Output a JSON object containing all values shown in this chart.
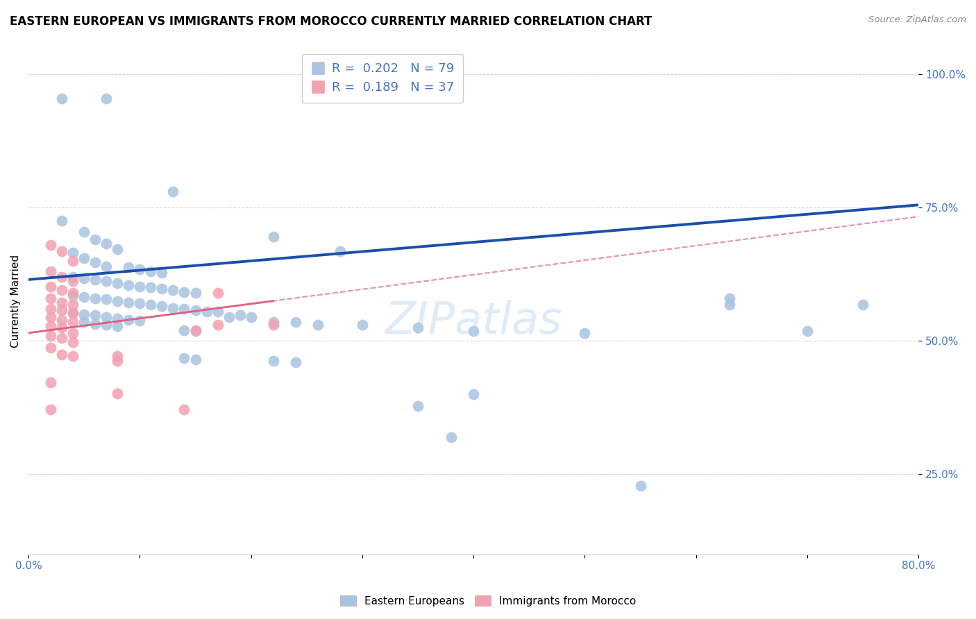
{
  "title": "EASTERN EUROPEAN VS IMMIGRANTS FROM MOROCCO CURRENTLY MARRIED CORRELATION CHART",
  "source": "Source: ZipAtlas.com",
  "ylabel": "Currently Married",
  "xlim": [
    0.0,
    0.8
  ],
  "ylim": [
    0.1,
    1.05
  ],
  "ytick_positions": [
    0.25,
    0.5,
    0.75,
    1.0
  ],
  "ytick_labels": [
    "25.0%",
    "50.0%",
    "75.0%",
    "100.0%"
  ],
  "R_blue": 0.202,
  "N_blue": 79,
  "R_pink": 0.189,
  "N_pink": 37,
  "watermark": "ZIPatlas",
  "blue_color": "#a8c4e0",
  "blue_line_color": "#1a4faa",
  "pink_color": "#f4a0b0",
  "pink_line_color": "#e06080",
  "blue_line_x": [
    0.0,
    0.8
  ],
  "blue_line_y": [
    0.615,
    0.755
  ],
  "pink_line_x": [
    0.0,
    0.22
  ],
  "pink_line_y": [
    0.515,
    0.575
  ],
  "blue_scatter": [
    [
      0.03,
      0.955
    ],
    [
      0.07,
      0.955
    ],
    [
      0.13,
      0.78
    ],
    [
      0.22,
      0.695
    ],
    [
      0.28,
      0.668
    ],
    [
      0.03,
      0.725
    ],
    [
      0.05,
      0.705
    ],
    [
      0.06,
      0.69
    ],
    [
      0.07,
      0.682
    ],
    [
      0.08,
      0.672
    ],
    [
      0.04,
      0.665
    ],
    [
      0.05,
      0.655
    ],
    [
      0.06,
      0.648
    ],
    [
      0.07,
      0.64
    ],
    [
      0.09,
      0.638
    ],
    [
      0.1,
      0.635
    ],
    [
      0.11,
      0.63
    ],
    [
      0.12,
      0.628
    ],
    [
      0.04,
      0.62
    ],
    [
      0.05,
      0.618
    ],
    [
      0.06,
      0.615
    ],
    [
      0.07,
      0.612
    ],
    [
      0.08,
      0.608
    ],
    [
      0.09,
      0.605
    ],
    [
      0.1,
      0.602
    ],
    [
      0.11,
      0.6
    ],
    [
      0.12,
      0.598
    ],
    [
      0.13,
      0.595
    ],
    [
      0.14,
      0.592
    ],
    [
      0.15,
      0.59
    ],
    [
      0.04,
      0.585
    ],
    [
      0.05,
      0.582
    ],
    [
      0.06,
      0.58
    ],
    [
      0.07,
      0.578
    ],
    [
      0.08,
      0.575
    ],
    [
      0.09,
      0.572
    ],
    [
      0.1,
      0.57
    ],
    [
      0.11,
      0.568
    ],
    [
      0.12,
      0.565
    ],
    [
      0.13,
      0.562
    ],
    [
      0.14,
      0.56
    ],
    [
      0.15,
      0.558
    ],
    [
      0.16,
      0.555
    ],
    [
      0.17,
      0.555
    ],
    [
      0.04,
      0.552
    ],
    [
      0.05,
      0.55
    ],
    [
      0.06,
      0.548
    ],
    [
      0.07,
      0.545
    ],
    [
      0.08,
      0.542
    ],
    [
      0.09,
      0.54
    ],
    [
      0.1,
      0.538
    ],
    [
      0.18,
      0.545
    ],
    [
      0.19,
      0.548
    ],
    [
      0.2,
      0.545
    ],
    [
      0.05,
      0.535
    ],
    [
      0.06,
      0.532
    ],
    [
      0.07,
      0.53
    ],
    [
      0.08,
      0.528
    ],
    [
      0.22,
      0.535
    ],
    [
      0.24,
      0.535
    ],
    [
      0.26,
      0.53
    ],
    [
      0.3,
      0.53
    ],
    [
      0.35,
      0.525
    ],
    [
      0.14,
      0.52
    ],
    [
      0.15,
      0.518
    ],
    [
      0.4,
      0.518
    ],
    [
      0.5,
      0.515
    ],
    [
      0.14,
      0.468
    ],
    [
      0.15,
      0.465
    ],
    [
      0.22,
      0.462
    ],
    [
      0.24,
      0.46
    ],
    [
      0.4,
      0.4
    ],
    [
      0.35,
      0.378
    ],
    [
      0.38,
      0.32
    ],
    [
      0.55,
      0.228
    ],
    [
      0.63,
      0.58
    ],
    [
      0.63,
      0.568
    ],
    [
      0.75,
      0.568
    ],
    [
      0.7,
      0.518
    ]
  ],
  "pink_scatter": [
    [
      0.02,
      0.68
    ],
    [
      0.03,
      0.668
    ],
    [
      0.04,
      0.65
    ],
    [
      0.02,
      0.63
    ],
    [
      0.03,
      0.62
    ],
    [
      0.04,
      0.612
    ],
    [
      0.02,
      0.602
    ],
    [
      0.03,
      0.595
    ],
    [
      0.04,
      0.59
    ],
    [
      0.02,
      0.58
    ],
    [
      0.03,
      0.572
    ],
    [
      0.04,
      0.568
    ],
    [
      0.02,
      0.56
    ],
    [
      0.03,
      0.558
    ],
    [
      0.04,
      0.552
    ],
    [
      0.02,
      0.545
    ],
    [
      0.03,
      0.54
    ],
    [
      0.04,
      0.535
    ],
    [
      0.02,
      0.528
    ],
    [
      0.03,
      0.525
    ],
    [
      0.04,
      0.515
    ],
    [
      0.02,
      0.51
    ],
    [
      0.03,
      0.505
    ],
    [
      0.04,
      0.498
    ],
    [
      0.02,
      0.488
    ],
    [
      0.03,
      0.475
    ],
    [
      0.04,
      0.472
    ],
    [
      0.17,
      0.59
    ],
    [
      0.17,
      0.53
    ],
    [
      0.15,
      0.52
    ],
    [
      0.22,
      0.53
    ],
    [
      0.08,
      0.472
    ],
    [
      0.08,
      0.462
    ],
    [
      0.02,
      0.422
    ],
    [
      0.08,
      0.402
    ],
    [
      0.02,
      0.372
    ],
    [
      0.14,
      0.372
    ]
  ]
}
